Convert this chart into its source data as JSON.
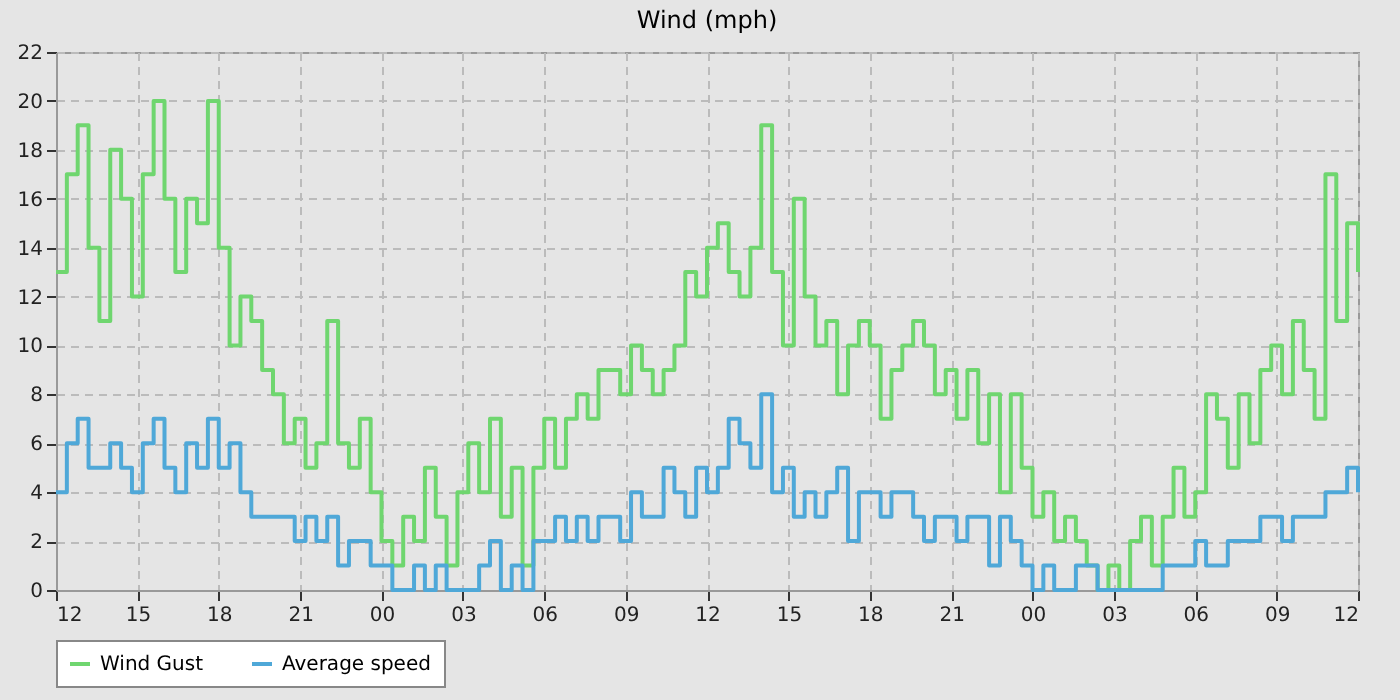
{
  "chart_data": {
    "type": "step",
    "title": "Wind (mph)",
    "x": [
      12,
      12.4,
      12.8,
      13.2,
      13.6,
      14,
      14.4,
      14.8,
      15.2,
      15.6,
      16,
      16.4,
      16.8,
      17.2,
      17.6,
      18,
      18.4,
      18.8,
      19.2,
      19.6,
      20,
      20.4,
      20.8,
      21.2,
      21.6,
      22,
      22.4,
      22.8,
      23.2,
      23.6,
      24,
      24.4,
      24.8,
      25.2,
      25.6,
      26,
      26.4,
      26.8,
      27.2,
      27.6,
      28,
      28.4,
      28.8,
      29.2,
      29.6,
      30,
      30.4,
      30.8,
      31.2,
      31.6,
      32,
      32.4,
      32.8,
      33.2,
      33.6,
      34,
      34.4,
      34.8,
      35.2,
      35.6,
      36,
      36.4,
      36.8,
      37.2,
      37.6,
      38,
      38.4,
      38.8,
      39.2,
      39.6,
      40,
      40.4,
      40.8,
      41.2,
      41.6,
      42,
      42.4,
      42.8,
      43.2,
      43.6,
      44,
      44.4,
      44.8,
      45.2,
      45.6,
      46,
      46.4,
      46.8,
      47.2,
      47.6,
      48,
      48.4,
      48.8,
      49.2,
      49.6,
      50,
      50.4,
      50.8,
      51.2,
      51.6,
      52,
      52.4,
      52.8,
      53.2,
      53.6,
      54,
      54.4,
      54.8,
      55.2,
      55.6,
      56,
      56.4,
      56.8,
      57.2,
      57.6,
      58,
      58.4,
      58.8,
      59.2,
      59.6,
      60
    ],
    "series": [
      {
        "name": "Wind Gust",
        "color": "#6fd66f",
        "values": [
          13,
          17,
          19,
          14,
          11,
          18,
          16,
          12,
          17,
          20,
          16,
          13,
          16,
          15,
          20,
          14,
          10,
          12,
          11,
          9,
          8,
          6,
          7,
          5,
          6,
          11,
          6,
          5,
          7,
          4,
          2,
          1,
          3,
          2,
          5,
          3,
          1,
          4,
          6,
          4,
          7,
          3,
          5,
          1,
          5,
          7,
          5,
          7,
          8,
          7,
          9,
          9,
          8,
          10,
          9,
          8,
          9,
          10,
          13,
          12,
          14,
          15,
          13,
          12,
          14,
          19,
          13,
          10,
          16,
          12,
          10,
          11,
          8,
          10,
          11,
          10,
          7,
          9,
          10,
          11,
          10,
          8,
          9,
          7,
          9,
          6,
          8,
          4,
          8,
          5,
          3,
          4,
          2,
          3,
          2,
          1,
          0,
          1,
          0,
          2,
          3,
          1,
          3,
          5,
          3,
          4,
          8,
          7,
          5,
          8,
          6,
          9,
          10,
          8,
          11,
          9,
          7,
          17,
          11,
          15,
          13
        ]
      },
      {
        "name": "Average speed",
        "color": "#4fa8d8",
        "values": [
          4,
          6,
          7,
          5,
          5,
          6,
          5,
          4,
          6,
          7,
          5,
          4,
          6,
          5,
          7,
          5,
          6,
          4,
          3,
          3,
          3,
          3,
          2,
          3,
          2,
          3,
          1,
          2,
          2,
          1,
          1,
          0,
          0,
          1,
          0,
          1,
          0,
          0,
          0,
          1,
          2,
          0,
          1,
          0,
          2,
          2,
          3,
          2,
          3,
          2,
          3,
          3,
          2,
          4,
          3,
          3,
          5,
          4,
          3,
          5,
          4,
          5,
          7,
          6,
          5,
          8,
          4,
          5,
          3,
          4,
          3,
          4,
          5,
          2,
          4,
          4,
          3,
          4,
          4,
          3,
          2,
          3,
          3,
          2,
          3,
          3,
          1,
          3,
          2,
          1,
          0,
          1,
          0,
          0,
          1,
          1,
          0,
          0,
          0,
          0,
          0,
          0,
          1,
          1,
          1,
          2,
          1,
          1,
          2,
          2,
          2,
          3,
          3,
          2,
          3,
          3,
          3,
          4,
          4,
          5,
          4
        ]
      }
    ],
    "xlim": [
      12,
      60
    ],
    "xticks": [
      {
        "value": 12,
        "label": "12"
      },
      {
        "value": 15,
        "label": "15"
      },
      {
        "value": 18,
        "label": "18"
      },
      {
        "value": 21,
        "label": "21"
      },
      {
        "value": 24,
        "label": "00"
      },
      {
        "value": 27,
        "label": "03"
      },
      {
        "value": 30,
        "label": "06"
      },
      {
        "value": 33,
        "label": "09"
      },
      {
        "value": 36,
        "label": "12"
      },
      {
        "value": 39,
        "label": "15"
      },
      {
        "value": 42,
        "label": "18"
      },
      {
        "value": 45,
        "label": "21"
      },
      {
        "value": 48,
        "label": "00"
      },
      {
        "value": 51,
        "label": "03"
      },
      {
        "value": 54,
        "label": "06"
      },
      {
        "value": 57,
        "label": "09"
      },
      {
        "value": 60,
        "label": "12"
      }
    ],
    "ylim": [
      0,
      22
    ],
    "yticks": [
      0,
      2,
      4,
      6,
      8,
      10,
      12,
      14,
      16,
      18,
      20,
      22
    ],
    "grid": true,
    "legend": "bottom",
    "line_style": "solid",
    "marker": "none"
  }
}
